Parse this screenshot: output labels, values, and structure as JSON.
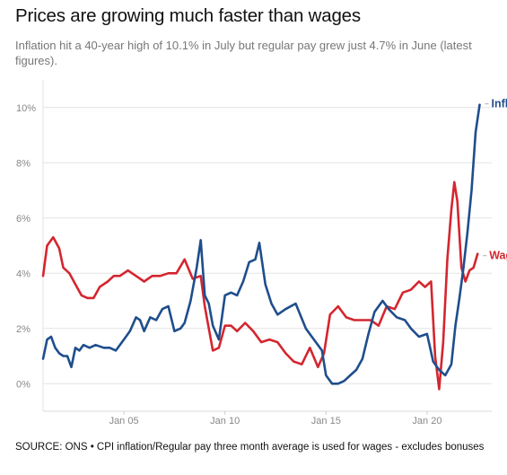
{
  "title": "Prices are growing much faster than wages",
  "subtitle": "Inflation hit a 40-year high of 10.1% in July but regular pay grew just 4.7% in June (latest figures).",
  "source": "SOURCE: ONS • CPI inflation/Regular pay three month average is used for wages - excludes bonuses",
  "colors": {
    "inflation": "#1f4e8c",
    "wages": "#d4262f",
    "grid": "#e3e3e3",
    "tick": "#888888"
  },
  "chart_data": {
    "type": "line",
    "title": "Prices are growing much faster than wages",
    "xlabel": "",
    "ylabel": "",
    "ylim": [
      -1,
      11
    ],
    "xlim": [
      2001.0,
      2023.2
    ],
    "yticks": [
      0,
      2,
      4,
      6,
      8,
      10
    ],
    "ytick_labels": [
      "0%",
      "2%",
      "4%",
      "6%",
      "8%",
      "10%"
    ],
    "xticks": [
      2005,
      2010,
      2015,
      2020
    ],
    "xtick_labels": [
      "Jan 05",
      "Jan 10",
      "Jan 15",
      "Jan 20"
    ],
    "grid": true,
    "legend": "direct labels at line ends",
    "series": [
      {
        "name": "Inflation",
        "x": [
          2001.0,
          2001.2,
          2001.4,
          2001.6,
          2001.8,
          2002.0,
          2002.2,
          2002.4,
          2002.6,
          2002.8,
          2003.0,
          2003.3,
          2003.6,
          2004.0,
          2004.3,
          2004.6,
          2005.0,
          2005.3,
          2005.6,
          2005.8,
          2006.0,
          2006.3,
          2006.6,
          2006.9,
          2007.2,
          2007.5,
          2007.8,
          2008.0,
          2008.3,
          2008.6,
          2008.8,
          2009.0,
          2009.2,
          2009.4,
          2009.7,
          2010.0,
          2010.3,
          2010.6,
          2010.9,
          2011.2,
          2011.5,
          2011.7,
          2012.0,
          2012.3,
          2012.6,
          2013.0,
          2013.5,
          2014.0,
          2014.4,
          2014.8,
          2015.0,
          2015.3,
          2015.6,
          2015.9,
          2016.2,
          2016.5,
          2016.8,
          2017.1,
          2017.4,
          2017.8,
          2018.1,
          2018.5,
          2018.9,
          2019.2,
          2019.6,
          2020.0,
          2020.3,
          2020.6,
          2020.9,
          2021.2,
          2021.4,
          2021.6,
          2021.8,
          2022.0,
          2022.2,
          2022.4,
          2022.6
        ],
        "values": [
          0.9,
          1.6,
          1.7,
          1.3,
          1.1,
          1.0,
          1.0,
          0.6,
          1.3,
          1.2,
          1.4,
          1.3,
          1.4,
          1.3,
          1.3,
          1.2,
          1.6,
          1.9,
          2.4,
          2.3,
          1.9,
          2.4,
          2.3,
          2.7,
          2.8,
          1.9,
          2.0,
          2.2,
          3.0,
          4.2,
          5.2,
          3.2,
          2.9,
          2.1,
          1.6,
          3.2,
          3.3,
          3.2,
          3.7,
          4.4,
          4.5,
          5.1,
          3.6,
          2.9,
          2.5,
          2.7,
          2.9,
          2.0,
          1.6,
          1.2,
          0.3,
          0.0,
          0.0,
          0.1,
          0.3,
          0.5,
          0.9,
          1.8,
          2.6,
          3.0,
          2.7,
          2.4,
          2.3,
          2.0,
          1.7,
          1.8,
          0.8,
          0.5,
          0.3,
          0.7,
          2.1,
          3.1,
          4.2,
          5.5,
          7.0,
          9.1,
          10.1
        ]
      },
      {
        "name": "Wage growth",
        "x": [
          2001.0,
          2001.2,
          2001.5,
          2001.8,
          2002.0,
          2002.3,
          2002.6,
          2002.9,
          2003.2,
          2003.5,
          2003.8,
          2004.2,
          2004.5,
          2004.8,
          2005.2,
          2005.6,
          2006.0,
          2006.4,
          2006.8,
          2007.2,
          2007.6,
          2008.0,
          2008.4,
          2008.8,
          2009.0,
          2009.2,
          2009.4,
          2009.7,
          2010.0,
          2010.3,
          2010.6,
          2011.0,
          2011.4,
          2011.8,
          2012.2,
          2012.6,
          2013.0,
          2013.4,
          2013.8,
          2014.2,
          2014.6,
          2014.9,
          2015.2,
          2015.6,
          2016.0,
          2016.4,
          2016.8,
          2017.2,
          2017.6,
          2018.0,
          2018.4,
          2018.8,
          2019.2,
          2019.6,
          2019.9,
          2020.2,
          2020.4,
          2020.6,
          2020.8,
          2021.0,
          2021.2,
          2021.35,
          2021.5,
          2021.7,
          2021.9,
          2022.1,
          2022.3,
          2022.5
        ],
        "values": [
          3.9,
          5.0,
          5.3,
          4.9,
          4.2,
          4.0,
          3.6,
          3.2,
          3.1,
          3.1,
          3.5,
          3.7,
          3.9,
          3.9,
          4.1,
          3.9,
          3.7,
          3.9,
          3.9,
          4.0,
          4.0,
          4.5,
          3.8,
          3.9,
          2.8,
          2.0,
          1.2,
          1.3,
          2.1,
          2.1,
          1.9,
          2.2,
          1.9,
          1.5,
          1.6,
          1.5,
          1.1,
          0.8,
          0.7,
          1.3,
          0.6,
          1.1,
          2.5,
          2.8,
          2.4,
          2.3,
          2.3,
          2.3,
          2.1,
          2.8,
          2.7,
          3.3,
          3.4,
          3.7,
          3.5,
          3.7,
          1.0,
          -0.2,
          1.5,
          4.5,
          6.3,
          7.3,
          6.6,
          4.2,
          3.7,
          4.1,
          4.2,
          4.7
        ]
      }
    ]
  }
}
